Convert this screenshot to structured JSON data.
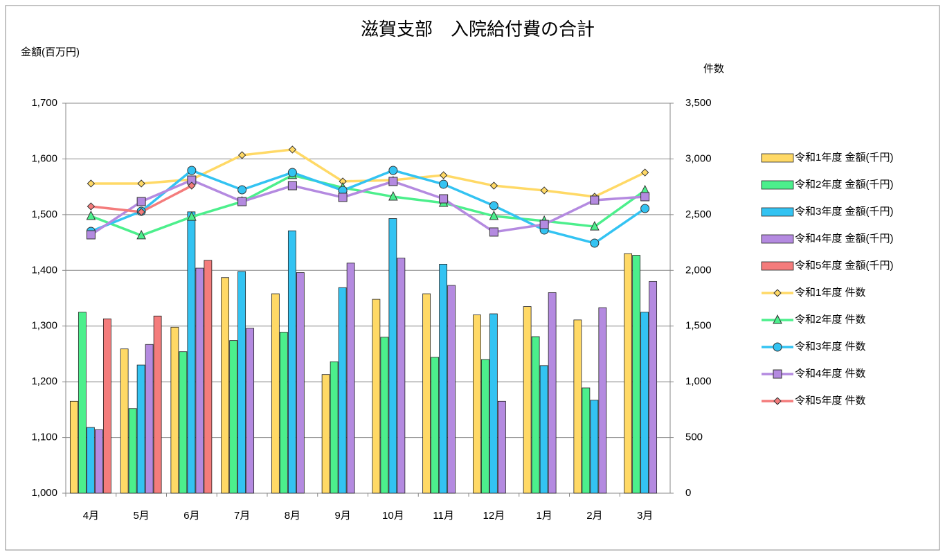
{
  "chart_data": {
    "type": "bar_line_combo",
    "title": "滋賀支部　入院給付費の合計",
    "y_label": "金額(百万円)",
    "y2_label": "件数",
    "categories": [
      "4月",
      "5月",
      "6月",
      "7月",
      "8月",
      "9月",
      "10月",
      "11月",
      "12月",
      "1月",
      "2月",
      "3月"
    ],
    "ylim": [
      1000,
      1700
    ],
    "yticks": [
      {
        "value": 1000,
        "label": "1,000"
      },
      {
        "value": 1100,
        "label": "1,100"
      },
      {
        "value": 1200,
        "label": "1,200"
      },
      {
        "value": 1300,
        "label": "1,300"
      },
      {
        "value": 1400,
        "label": "1,400"
      },
      {
        "value": 1500,
        "label": "1,500"
      },
      {
        "value": 1600,
        "label": "1,600"
      },
      {
        "value": 1700,
        "label": "1,700"
      }
    ],
    "y2lim": [
      0,
      3500
    ],
    "y2ticks": [
      0,
      500,
      {
        "value": 1000,
        "label": "1,000"
      },
      {
        "value": 1500,
        "label": "1,500"
      },
      {
        "value": 2000,
        "label": "2,000"
      },
      {
        "value": 2500,
        "label": "2,500"
      },
      {
        "value": 3000,
        "label": "3,000"
      },
      {
        "value": 3500,
        "label": "3,500"
      }
    ],
    "grid": true,
    "legend": "right",
    "series": [
      {
        "name": "令和1年度 金額(千円)",
        "type": "bar",
        "color": "#ffd966",
        "values": [
          1165,
          1259,
          1298,
          1387,
          1358,
          1213,
          1348,
          1358,
          1320,
          1335,
          1311,
          1430
        ]
      },
      {
        "name": "令和2年度 金額(千円)",
        "type": "bar",
        "color": "#4cef8c",
        "values": [
          1325,
          1152,
          1254,
          1274,
          1289,
          1236,
          1280,
          1244,
          1240,
          1281,
          1189,
          1427
        ]
      },
      {
        "name": "令和3年度 金額(千円)",
        "type": "bar",
        "color": "#33c3f2",
        "values": [
          1118,
          1230,
          1505,
          1398,
          1471,
          1369,
          1493,
          1411,
          1322,
          1229,
          1167,
          1325
        ]
      },
      {
        "name": "令和4年度 金額(千円)",
        "type": "bar",
        "color": "#b48ae0",
        "values": [
          1114,
          1267,
          1404,
          1296,
          1396,
          1413,
          1422,
          1373,
          1165,
          1360,
          1333,
          1380
        ]
      },
      {
        "name": "令和5年度 金額(千円)",
        "type": "bar",
        "color": "#f47c7c",
        "values": [
          1313,
          1318,
          1418,
          null,
          null,
          null,
          null,
          null,
          null,
          null,
          null,
          null
        ]
      },
      {
        "name": "令和1年度 件数",
        "type": "line",
        "axis": "y2",
        "marker": "diamond",
        "color": "#ffd966",
        "values": [
          2779,
          2779,
          2816,
          3034,
          3084,
          2798,
          2810,
          2854,
          2760,
          2717,
          2661,
          2878
        ]
      },
      {
        "name": "令和2年度 件数",
        "type": "line",
        "axis": "y2",
        "marker": "triangle",
        "color": "#4cef8c",
        "values": [
          2487,
          2313,
          2480,
          2617,
          2854,
          2742,
          2661,
          2605,
          2487,
          2443,
          2393,
          2717
        ]
      },
      {
        "name": "令和3年度 件数",
        "type": "line",
        "axis": "y2",
        "marker": "circle",
        "color": "#33c3f2",
        "values": [
          2350,
          2530,
          2897,
          2723,
          2878,
          2717,
          2897,
          2773,
          2580,
          2362,
          2244,
          2555
        ]
      },
      {
        "name": "令和4年度 件数",
        "type": "line",
        "axis": "y2",
        "marker": "square",
        "color": "#b48ae0",
        "values": [
          2319,
          2617,
          2810,
          2617,
          2760,
          2655,
          2798,
          2642,
          2344,
          2412,
          2630,
          2661
        ]
      },
      {
        "name": "令和5年度 件数",
        "type": "line",
        "axis": "y2",
        "marker": "diamond",
        "color": "#f47c7c",
        "values": [
          2574,
          2524,
          2760,
          null,
          null,
          null,
          null,
          null,
          null,
          null,
          null,
          null
        ]
      }
    ]
  }
}
